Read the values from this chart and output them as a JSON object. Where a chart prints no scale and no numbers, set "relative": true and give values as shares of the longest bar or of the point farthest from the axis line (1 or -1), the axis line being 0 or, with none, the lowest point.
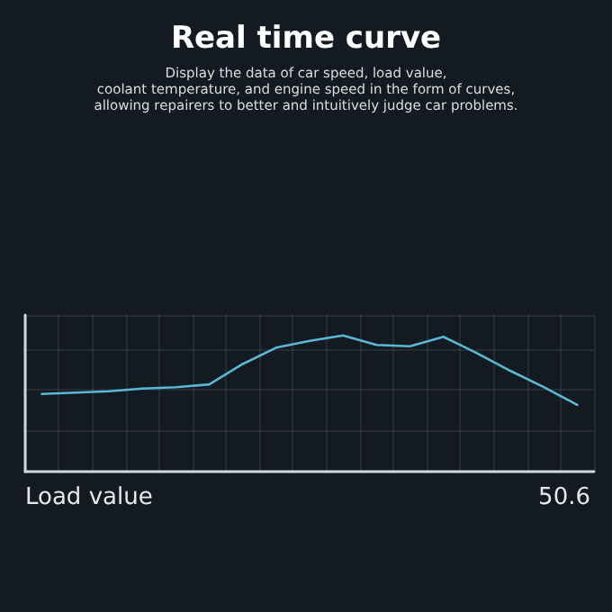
{
  "chart_data": {
    "type": "line",
    "title": "Real time curve",
    "subtitle": "Display the data of car speed, load value,\ncoolant temperature, and engine speed in the form of curves,\nallowing repairers to better and intuitively judge car problems.",
    "xlabel": "Load value",
    "annotations": [
      "50.6"
    ],
    "relative": true,
    "categories": [
      null,
      null,
      null,
      null,
      null,
      null,
      null,
      null,
      null,
      null,
      null,
      null,
      null,
      null,
      null,
      null,
      null
    ],
    "series": [
      {
        "color": "#5ab8d6",
        "values": [
          0.57,
          0.58,
          0.59,
          0.61,
          0.62,
          0.64,
          0.79,
          0.91,
          0.96,
          1,
          0.93,
          0.92,
          0.99,
          0.87,
          0.74,
          0.62,
          0.49
        ]
      }
    ],
    "grid": true,
    "marker": "none",
    "line_style": "solid"
  }
}
